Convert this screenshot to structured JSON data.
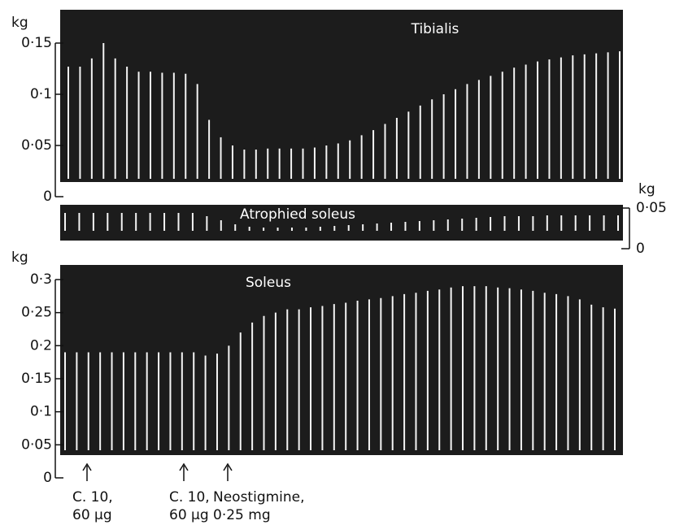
{
  "chart_data": [
    {
      "type": "twitch",
      "title": "Tibialis",
      "y_label": "kg",
      "color": "#f4f4f4",
      "ylim": [
        0,
        0.15
      ],
      "yticks": [
        {
          "value": 0,
          "label": "0"
        },
        {
          "value": 0.05,
          "label": "0·05"
        },
        {
          "value": 0.1,
          "label": "0·1"
        },
        {
          "value": 0.15,
          "label": "0·15"
        }
      ],
      "values": [
        0.127,
        0.127,
        0.135,
        0.15,
        0.135,
        0.127,
        0.122,
        0.122,
        0.121,
        0.121,
        0.12,
        0.11,
        0.075,
        0.058,
        0.05,
        0.046,
        0.046,
        0.047,
        0.047,
        0.047,
        0.047,
        0.048,
        0.05,
        0.052,
        0.055,
        0.06,
        0.065,
        0.071,
        0.077,
        0.083,
        0.089,
        0.095,
        0.1,
        0.105,
        0.11,
        0.114,
        0.118,
        0.122,
        0.126,
        0.129,
        0.132,
        0.134,
        0.136,
        0.138,
        0.139,
        0.14,
        0.141,
        0.142
      ]
    },
    {
      "type": "twitch",
      "title": "Atrophied soleus",
      "y_label": "kg",
      "color": "#f4f4f4",
      "ylim": [
        0,
        0.05
      ],
      "yticks": [
        {
          "value": 0,
          "label": "0"
        },
        {
          "value": 0.05,
          "label": "0·05"
        }
      ],
      "values": [
        0.044,
        0.044,
        0.044,
        0.044,
        0.044,
        0.044,
        0.044,
        0.044,
        0.044,
        0.044,
        0.04,
        0.035,
        0.03,
        0.027,
        0.026,
        0.026,
        0.026,
        0.026,
        0.027,
        0.028,
        0.029,
        0.03,
        0.031,
        0.032,
        0.033,
        0.034,
        0.035,
        0.036,
        0.037,
        0.038,
        0.039,
        0.04,
        0.04,
        0.04,
        0.041,
        0.041,
        0.041,
        0.041,
        0.041,
        0.041
      ]
    },
    {
      "type": "twitch",
      "title": "Soleus",
      "y_label": "kg",
      "color": "#f4f4f4",
      "ylim": [
        0,
        0.3
      ],
      "yticks": [
        {
          "value": 0,
          "label": "0"
        },
        {
          "value": 0.05,
          "label": "0·05"
        },
        {
          "value": 0.1,
          "label": "0·1"
        },
        {
          "value": 0.15,
          "label": "0·15"
        },
        {
          "value": 0.2,
          "label": "0·2"
        },
        {
          "value": 0.25,
          "label": "0·25"
        },
        {
          "value": 0.3,
          "label": "0·3"
        }
      ],
      "values": [
        0.19,
        0.19,
        0.19,
        0.19,
        0.19,
        0.19,
        0.19,
        0.19,
        0.19,
        0.19,
        0.19,
        0.19,
        0.185,
        0.188,
        0.2,
        0.22,
        0.235,
        0.245,
        0.25,
        0.255,
        0.255,
        0.258,
        0.26,
        0.263,
        0.265,
        0.268,
        0.27,
        0.272,
        0.275,
        0.278,
        0.28,
        0.283,
        0.285,
        0.288,
        0.29,
        0.29,
        0.29,
        0.288,
        0.287,
        0.285,
        0.283,
        0.28,
        0.278,
        0.275,
        0.27,
        0.262,
        0.258,
        0.256
      ]
    }
  ],
  "annotations": [
    {
      "lines": [
        "C. 10,",
        "60 µg"
      ]
    },
    {
      "lines": [
        "C. 10,",
        "60 µg"
      ]
    },
    {
      "lines": [
        "Neostigmine,",
        "0·25 mg"
      ]
    }
  ]
}
